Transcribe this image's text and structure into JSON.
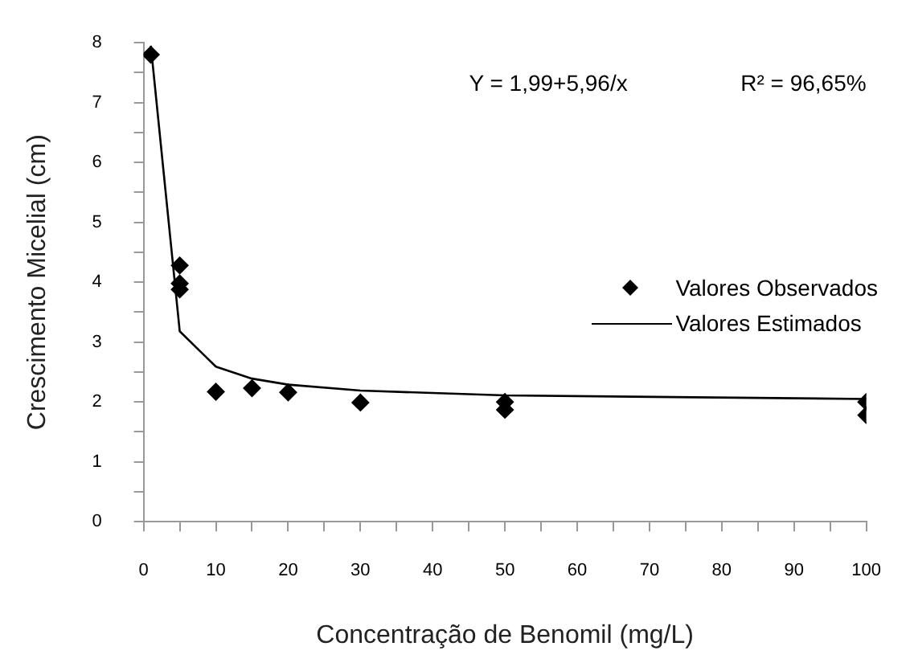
{
  "chart_data": {
    "type": "scatter",
    "xlabel": "Concentração de Benomil (mg/L)",
    "ylabel": "Crescimento Micelial (cm)",
    "annotations": [
      "Y = 1,99+5,96/x",
      "R² = 96,65%"
    ],
    "series": [
      {
        "name": "Valores Observados",
        "type": "scatter",
        "color": "#000000",
        "marker": "diamond",
        "x": [
          1,
          5,
          5,
          5,
          10,
          15,
          20,
          30,
          50,
          50,
          100,
          100
        ],
        "values": [
          7.8,
          4.28,
          3.98,
          3.88,
          2.17,
          2.23,
          2.16,
          1.99,
          2.0,
          1.87,
          2.0,
          1.78
        ]
      },
      {
        "name": "Valores Estimados",
        "type": "line",
        "color": "#000000",
        "marker": "none",
        "x": [
          1,
          5,
          10,
          15,
          20,
          30,
          50,
          100
        ],
        "values": [
          7.95,
          3.18,
          2.59,
          2.39,
          2.29,
          2.19,
          2.11,
          2.05
        ]
      }
    ],
    "xlim": [
      0,
      100
    ],
    "xticks": [
      0,
      {
        "value": 5,
        "label": null
      },
      10,
      {
        "value": 15,
        "label": null
      },
      20,
      {
        "value": 25,
        "label": null
      },
      30,
      {
        "value": 35,
        "label": null
      },
      40,
      {
        "value": 45,
        "label": null
      },
      50,
      {
        "value": 55,
        "label": null
      },
      60,
      {
        "value": 65,
        "label": null
      },
      70,
      {
        "value": 75,
        "label": null
      },
      80,
      {
        "value": 85,
        "label": null
      },
      90,
      {
        "value": 95,
        "label": null
      },
      100
    ],
    "ylim": [
      0,
      8
    ],
    "yticks": [
      0,
      {
        "value": 0.5,
        "label": null
      },
      1,
      {
        "value": 1.5,
        "label": null
      },
      2,
      {
        "value": 2.5,
        "label": null
      },
      3,
      {
        "value": 3.5,
        "label": null
      },
      4,
      {
        "value": 4.5,
        "label": null
      },
      5,
      {
        "value": 5.5,
        "label": null
      },
      6,
      {
        "value": 6.5,
        "label": null
      },
      7,
      {
        "value": 7.5,
        "label": null
      },
      8
    ],
    "grid": false,
    "legend": "right"
  }
}
